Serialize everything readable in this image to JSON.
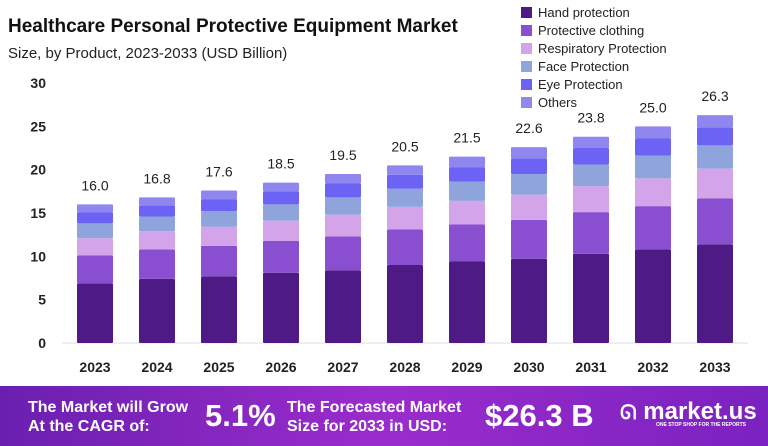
{
  "chart_data": {
    "type": "bar",
    "stacked": true,
    "title": "Healthcare Personal Protective Equipment Market",
    "subtitle": "Size, by Product, 2023-2033 (USD Billion)",
    "categories": [
      "2023",
      "2024",
      "2025",
      "2026",
      "2027",
      "2028",
      "2029",
      "2030",
      "2031",
      "2032",
      "2033"
    ],
    "totals": [
      "16.0",
      "16.8",
      "17.6",
      "18.5",
      "19.5",
      "20.5",
      "21.5",
      "22.6",
      "23.8",
      "25.0",
      "26.3"
    ],
    "ylim": [
      0,
      30
    ],
    "yticks": [
      "0",
      "5",
      "10",
      "15",
      "20",
      "25",
      "30"
    ],
    "grid": false,
    "legend": "top-right",
    "series": [
      {
        "name": "Hand protection",
        "color": "#4e1a85",
        "values": [
          6.9,
          7.4,
          7.7,
          8.1,
          8.4,
          9.0,
          9.4,
          9.7,
          10.3,
          10.8,
          11.4
        ]
      },
      {
        "name": "Protective clothing",
        "color": "#8a4fd0",
        "values": [
          3.2,
          3.4,
          3.5,
          3.7,
          3.9,
          4.1,
          4.3,
          4.5,
          4.8,
          5.0,
          5.3
        ]
      },
      {
        "name": "Respiratory Protection",
        "color": "#d3a4ea",
        "values": [
          2.0,
          2.1,
          2.2,
          2.3,
          2.5,
          2.6,
          2.7,
          2.9,
          3.0,
          3.2,
          3.4
        ]
      },
      {
        "name": "Face Protection",
        "color": "#8fa3dc",
        "values": [
          1.7,
          1.7,
          1.8,
          1.9,
          2.0,
          2.1,
          2.2,
          2.4,
          2.5,
          2.6,
          2.7
        ]
      },
      {
        "name": "Eye Protection",
        "color": "#6c63f5",
        "values": [
          1.3,
          1.3,
          1.4,
          1.5,
          1.6,
          1.6,
          1.7,
          1.8,
          1.9,
          2.0,
          2.1
        ]
      },
      {
        "name": "Others",
        "color": "#8f86f0",
        "values": [
          0.9,
          0.9,
          1.0,
          1.0,
          1.1,
          1.1,
          1.2,
          1.3,
          1.3,
          1.4,
          1.4
        ]
      }
    ]
  },
  "banner": {
    "cagr_label_1": "The Market will Grow",
    "cagr_label_2": "At the CAGR of:",
    "cagr_value": "5.1%",
    "size_label_1": "The Forecasted Market",
    "size_label_2": "Size for 2033 in USD:",
    "size_value": "$26.3 B",
    "logo": "market.us",
    "logo_tagline": "ONE STOP SHOP FOR THE REPORTS"
  }
}
